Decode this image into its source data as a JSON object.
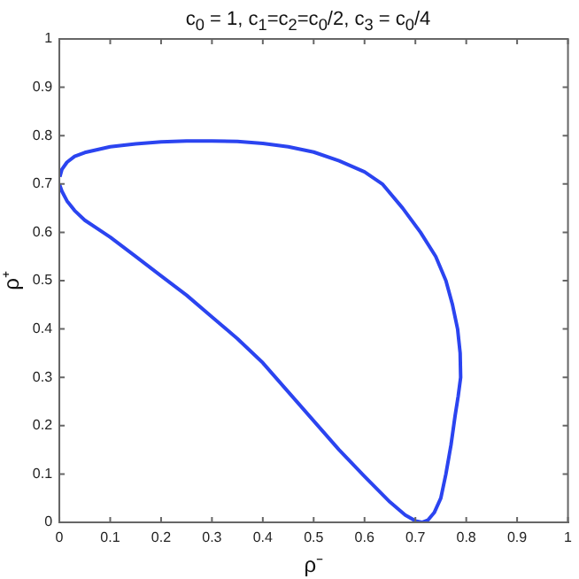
{
  "chart_data": {
    "type": "line",
    "title": "c$_{0}$ = 1, c$_{1}$=c$_{2}$=c$_{0}$/2, c$_{3}$ = c$_{0}$/4",
    "xlabel": "ρ⁻",
    "ylabel": "ρ⁺",
    "series": [
      {
        "color": "#2b44f0",
        "x": [
          0,
          0.005,
          0.015,
          0.03,
          0.05,
          0.1,
          0.15,
          0.2,
          0.25,
          0.3,
          0.35,
          0.4,
          0.45,
          0.5,
          0.55,
          0.6,
          0.65,
          0.68,
          0.7,
          0.713,
          0.725,
          0.737,
          0.75,
          0.76,
          0.77,
          0.778,
          0.784,
          0.789,
          0.788,
          0.783,
          0.773,
          0.76,
          0.74,
          0.71,
          0.675,
          0.635,
          0.6,
          0.55,
          0.5,
          0.45,
          0.4,
          0.35,
          0.3,
          0.25,
          0.2,
          0.15,
          0.1,
          0.05,
          0.03,
          0.015,
          0.005,
          0.001
        ],
        "values": [
          0.7,
          0.685,
          0.665,
          0.645,
          0.625,
          0.59,
          0.55,
          0.51,
          0.47,
          0.425,
          0.38,
          0.33,
          0.27,
          0.21,
          0.15,
          0.095,
          0.042,
          0.015,
          0.003,
          0,
          0.005,
          0.02,
          0.05,
          0.1,
          0.16,
          0.22,
          0.26,
          0.3,
          0.35,
          0.4,
          0.45,
          0.5,
          0.55,
          0.6,
          0.65,
          0.7,
          0.725,
          0.748,
          0.766,
          0.777,
          0.784,
          0.788,
          0.789,
          0.789,
          0.787,
          0.783,
          0.777,
          0.765,
          0.757,
          0.745,
          0.73,
          0.715
        ]
      }
    ],
    "xlim": [
      0,
      1
    ],
    "ylim": [
      0,
      1
    ],
    "xticks": [
      0,
      0.1,
      0.2,
      0.3,
      0.4,
      0.5,
      0.6,
      0.7,
      0.8,
      0.9,
      1
    ],
    "yticks": [
      0,
      0.1,
      0.2,
      0.3,
      0.4,
      0.5,
      0.6,
      0.7,
      0.8,
      0.9,
      1
    ],
    "grid": false,
    "legend": false,
    "marker": "none",
    "line_style": "solid"
  }
}
